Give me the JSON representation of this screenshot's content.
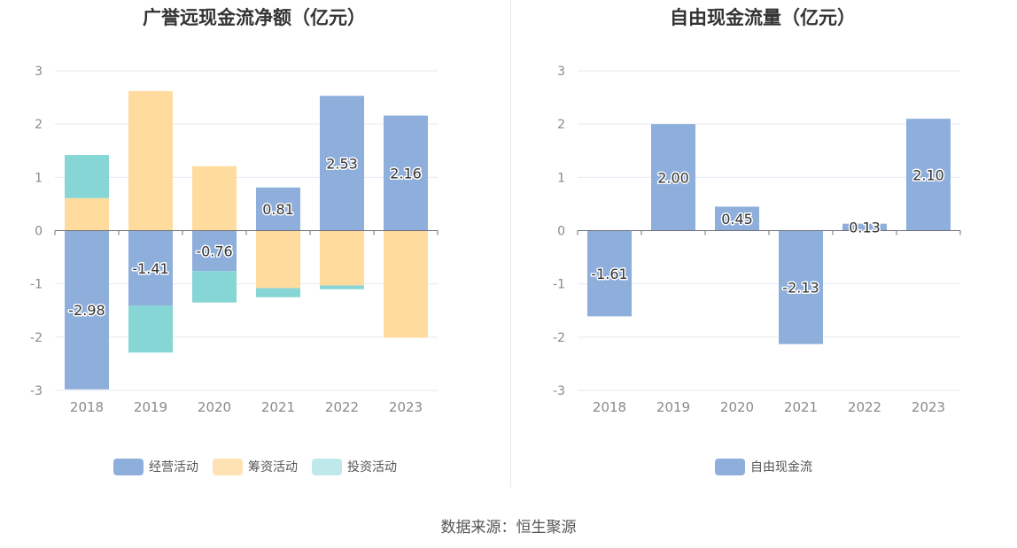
{
  "chart_data": [
    {
      "type": "bar",
      "stacked": true,
      "title": "广誉远现金流净额（亿元）",
      "categories": [
        "2018",
        "2019",
        "2020",
        "2021",
        "2022",
        "2023"
      ],
      "ylim": [
        -3,
        3
      ],
      "yticks": [
        "3",
        "2",
        "1",
        "0",
        "-1",
        "-2",
        "-3"
      ],
      "grid": true,
      "legend_position": "bottom",
      "series": [
        {
          "name": "经营活动",
          "color": "#8eaedc",
          "values": [
            -2.98,
            -1.41,
            -0.76,
            0.81,
            2.53,
            2.16
          ],
          "labels": [
            "-2.98",
            "-1.41",
            "-0.76",
            "0.81",
            "2.53",
            "2.16"
          ]
        },
        {
          "name": "筹资活动",
          "color": "#ffdb9e",
          "values": [
            0.61,
            2.62,
            1.21,
            -1.08,
            -1.03,
            -2.01
          ]
        },
        {
          "name": "投资活动",
          "color": "#87d6d6",
          "values": [
            0.81,
            -0.88,
            -0.59,
            -0.17,
            -0.07,
            0
          ]
        }
      ]
    },
    {
      "type": "bar",
      "title": "自由现金流量（亿元）",
      "categories": [
        "2018",
        "2019",
        "2020",
        "2021",
        "2022",
        "2023"
      ],
      "ylim": [
        -3,
        3
      ],
      "yticks": [
        "3",
        "2",
        "1",
        "0",
        "-1",
        "-2",
        "-3"
      ],
      "grid": true,
      "legend_position": "bottom",
      "series": [
        {
          "name": "自由现金流",
          "color": "#8eaedc",
          "values": [
            -1.61,
            2.0,
            0.45,
            -2.13,
            0.13,
            2.1
          ],
          "labels": [
            "-1.61",
            "2.00",
            "0.45",
            "-2.13",
            "0.13",
            "2.10"
          ]
        }
      ]
    }
  ],
  "source": "数据来源：恒生聚源",
  "colors": {
    "grid": "#e6e9f2",
    "axis": "#6e7079",
    "tick_text": "#8a8a8a",
    "label_text": "#333333"
  }
}
